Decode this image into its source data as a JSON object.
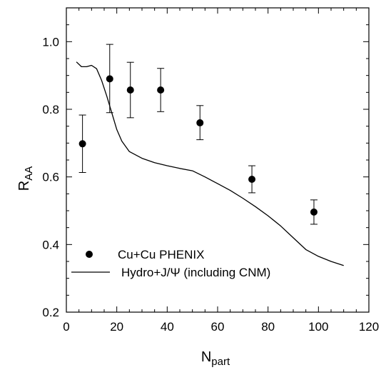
{
  "chart_data": {
    "type": "scatter",
    "xlabel": {
      "main": "N",
      "sub": "part"
    },
    "ylabel": {
      "main": "R",
      "sub": "AA"
    },
    "xlim": [
      0,
      120
    ],
    "ylim": [
      0.2,
      1.1
    ],
    "x_ticks_major": [
      0,
      20,
      40,
      60,
      80,
      100,
      120
    ],
    "x_ticks_major_labels": [
      "0",
      "20",
      "40",
      "60",
      "80",
      "100",
      "120"
    ],
    "y_ticks_major": [
      0.2,
      0.4,
      0.6,
      0.8,
      1.0
    ],
    "y_ticks_major_labels": [
      "0.2",
      "0.4",
      "0.6",
      "0.8",
      "1.0"
    ],
    "x_minor_step": 5,
    "y_minor_step": 0.05,
    "grid": false,
    "legend_position": "bottom-left",
    "series": [
      {
        "name": "Cu+Cu PHENIX",
        "kind": "points-with-errorbars",
        "color": "#000000",
        "points": [
          {
            "x": 6.4,
            "y": 0.698,
            "err_lo": 0.085,
            "err_hi": 0.085
          },
          {
            "x": 17.2,
            "y": 0.89,
            "err_lo": 0.1,
            "err_hi": 0.102
          },
          {
            "x": 25.4,
            "y": 0.857,
            "err_lo": 0.082,
            "err_hi": 0.082
          },
          {
            "x": 37.4,
            "y": 0.857,
            "err_lo": 0.064,
            "err_hi": 0.064
          },
          {
            "x": 53.0,
            "y": 0.76,
            "err_lo": 0.05,
            "err_hi": 0.051
          },
          {
            "x": 73.6,
            "y": 0.593,
            "err_lo": 0.04,
            "err_hi": 0.04
          },
          {
            "x": 98.2,
            "y": 0.496,
            "err_lo": 0.036,
            "err_hi": 0.036
          }
        ]
      },
      {
        "name": "Hydro+J/Ψ (including CNM)",
        "kind": "line",
        "color": "#000000",
        "x": [
          4,
          6,
          8,
          10,
          12,
          14,
          16,
          18,
          20,
          22,
          25,
          30,
          35,
          40,
          45,
          50,
          55,
          60,
          65,
          70,
          75,
          80,
          85,
          90,
          95,
          100,
          105,
          110
        ],
        "y": [
          0.94,
          0.926,
          0.926,
          0.93,
          0.92,
          0.885,
          0.84,
          0.79,
          0.74,
          0.706,
          0.675,
          0.655,
          0.642,
          0.633,
          0.625,
          0.618,
          0.6,
          0.58,
          0.56,
          0.537,
          0.512,
          0.485,
          0.455,
          0.42,
          0.385,
          0.365,
          0.35,
          0.338
        ]
      }
    ]
  }
}
